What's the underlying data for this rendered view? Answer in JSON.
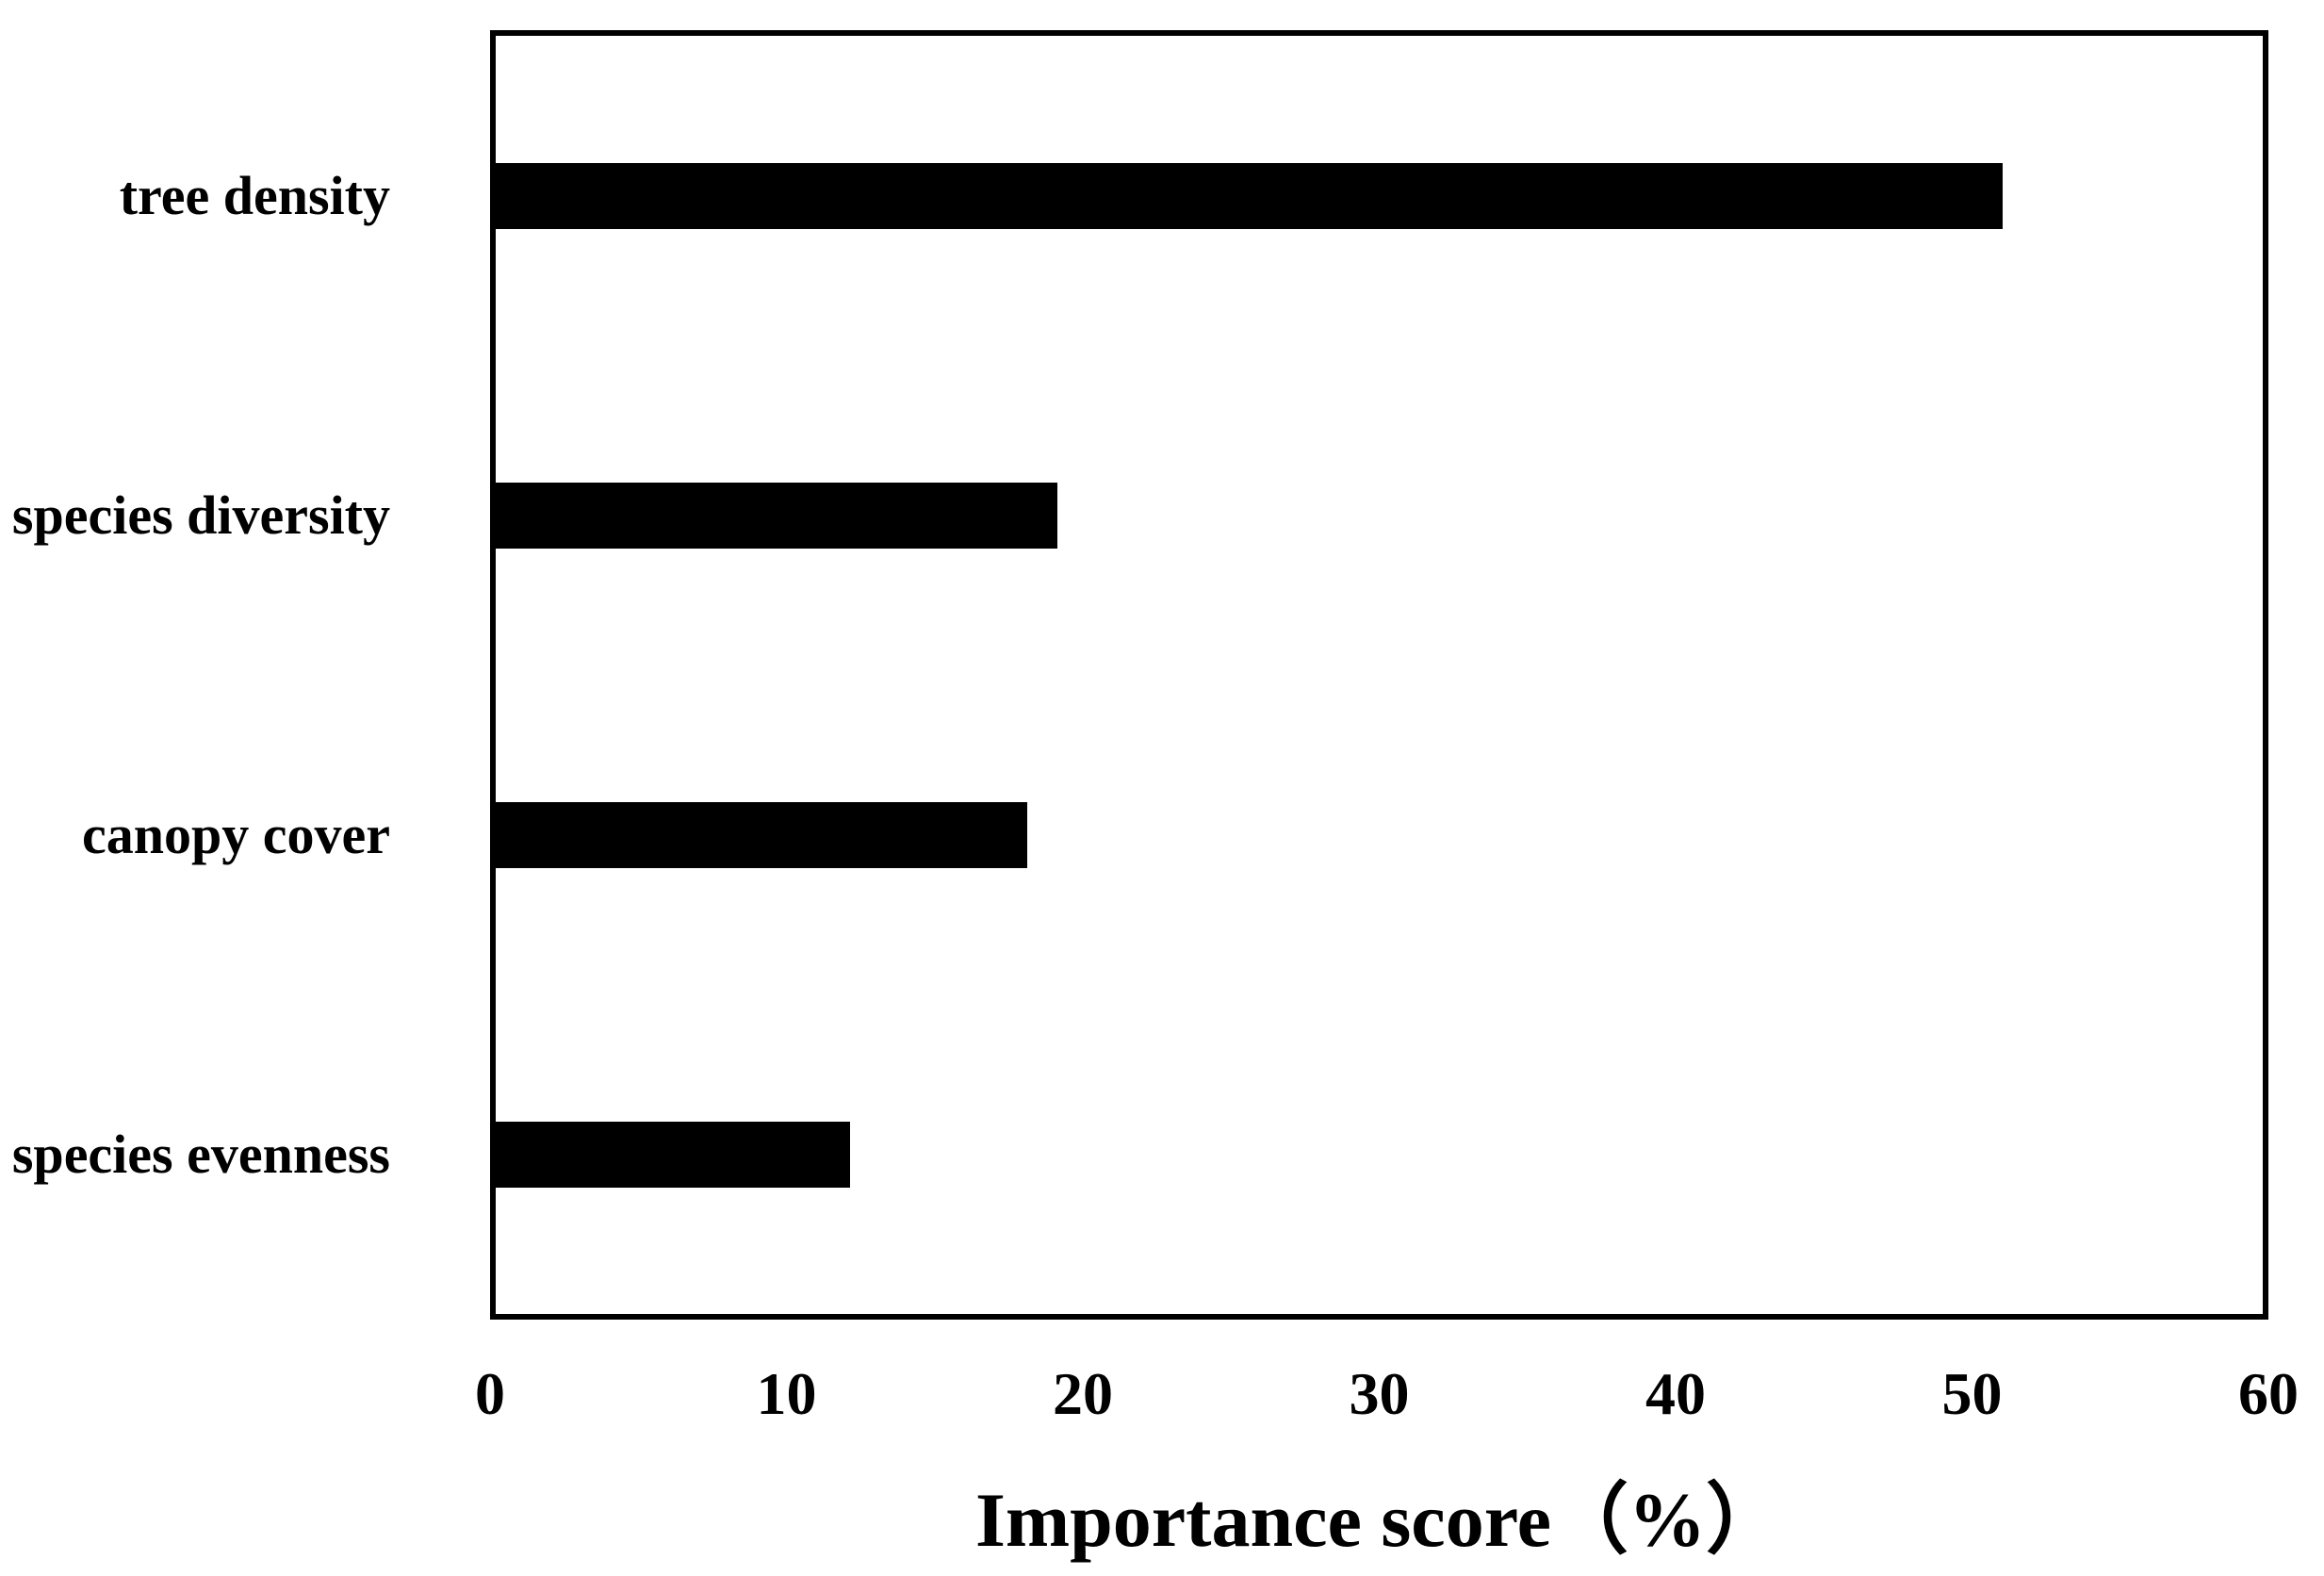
{
  "figure": {
    "background_color": "#ffffff",
    "frame_color": "#000000"
  },
  "chart_data": {
    "type": "bar",
    "orientation": "horizontal",
    "title": "",
    "xlabel": "Importance score（%）",
    "ylabel": "",
    "categories": [
      "tree density",
      "species diversity",
      "canopy cover",
      "species evenness"
    ],
    "values": [
      51,
      19,
      18,
      12
    ],
    "xlim": [
      0,
      60
    ],
    "xticks": [
      0,
      10,
      20,
      30,
      40,
      50,
      60
    ],
    "bar_color": "#000000",
    "grid": false,
    "legend_position": "none"
  }
}
